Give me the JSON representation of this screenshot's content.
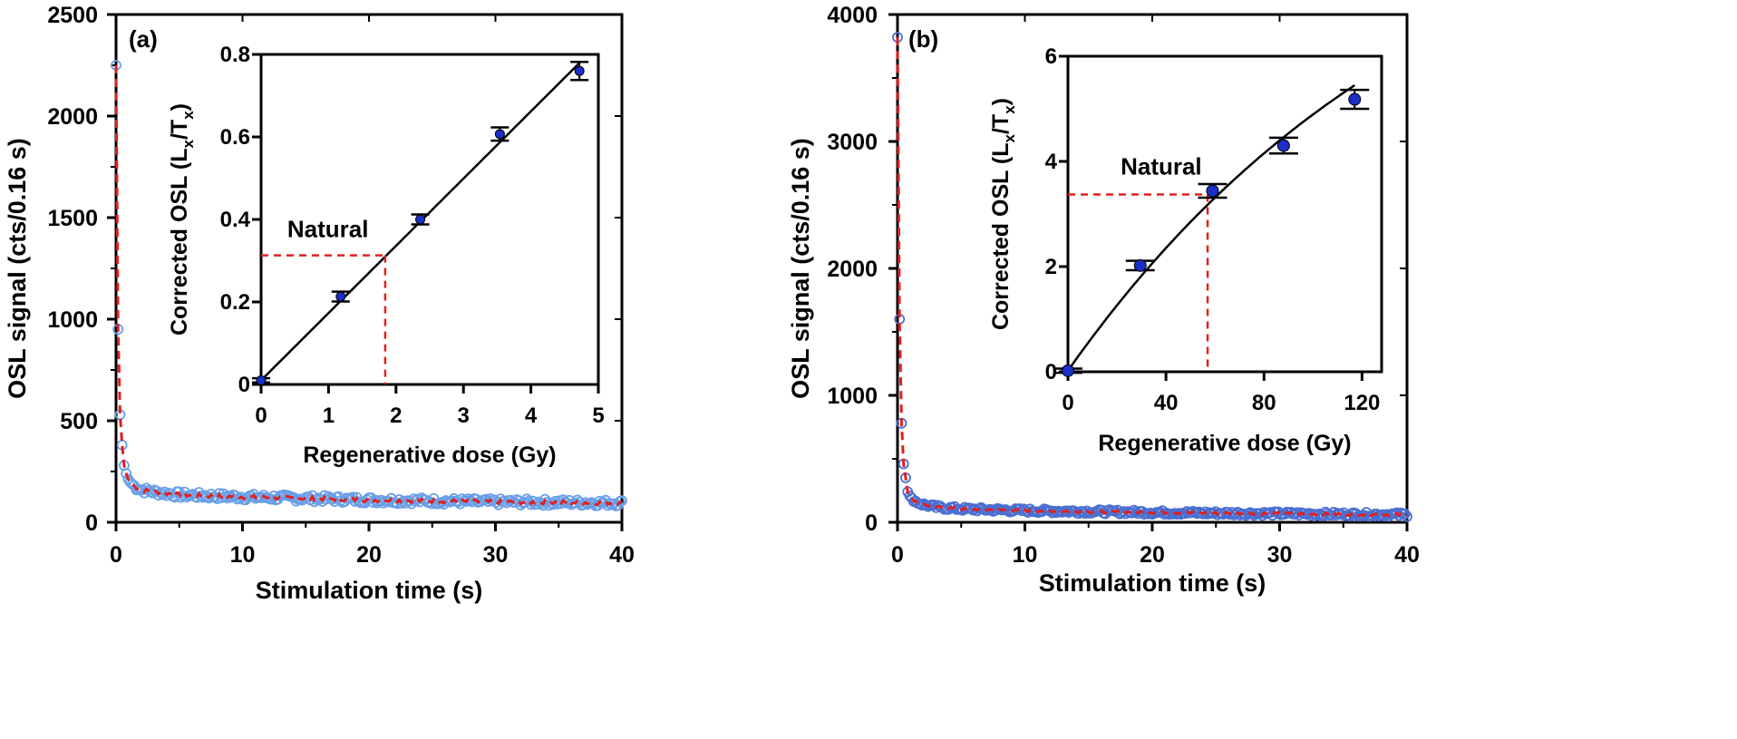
{
  "colors": {
    "open_marker_a": "#6a9fe8",
    "open_marker_b": "#4a6fd0",
    "fit_dashed": "#e02020",
    "filled_marker": "#1a2fc8",
    "line": "#000000",
    "guide_dashed": "#e02020"
  },
  "chart_data": [
    {
      "panel": "(a)",
      "type": "scatter",
      "xlabel": "Stimulation time (s)",
      "ylabel": "OSL signal (cts/0.16 s)",
      "xlim": [
        0,
        40
      ],
      "ylim": [
        0,
        2500
      ],
      "xticks": [
        0,
        10,
        20,
        30,
        40
      ],
      "yticks": [
        0,
        500,
        1000,
        1500,
        2000,
        2500
      ],
      "decay": {
        "peak": 2250,
        "peak_time": 0.0,
        "sampling_interval": 0.16,
        "points": [
          [
            0.0,
            2250
          ],
          [
            0.16,
            950
          ],
          [
            0.32,
            530
          ],
          [
            0.48,
            380
          ],
          [
            0.64,
            280
          ],
          [
            0.8,
            240
          ],
          [
            1.0,
            205
          ],
          [
            1.5,
            175
          ],
          [
            2.0,
            160
          ],
          [
            3.0,
            150
          ],
          [
            5.0,
            135
          ],
          [
            10.0,
            125
          ],
          [
            15.0,
            118
          ],
          [
            20.0,
            110
          ],
          [
            25.0,
            105
          ],
          [
            30.0,
            100
          ],
          [
            35.0,
            98
          ],
          [
            40.0,
            95
          ]
        ]
      },
      "series": [
        {
          "name": "OSL signal",
          "style": "open circles"
        },
        {
          "name": "fit",
          "style": "red dashed line"
        }
      ],
      "inset": {
        "type": "scatter",
        "xlabel": "Regenerative dose (Gy)",
        "ylabel_main": "Corrected OSL (L",
        "ylabel_sub1": "x",
        "ylabel_mid": "/T",
        "ylabel_sub2": "x",
        "ylabel_end": ")",
        "xlim": [
          0,
          5
        ],
        "ylim": [
          0,
          0.8
        ],
        "xticks": [
          0,
          1,
          2,
          3,
          4,
          5
        ],
        "yticks": [
          0,
          0.2,
          0.4,
          0.6,
          0.8
        ],
        "ytick_labels": [
          "0",
          "0.2",
          "0.4",
          "0.6",
          "0.8"
        ],
        "points": [
          {
            "x": 0.0,
            "y": 0.01,
            "err": 0.005
          },
          {
            "x": 1.18,
            "y": 0.213,
            "err": 0.012
          },
          {
            "x": 2.36,
            "y": 0.4,
            "err": 0.012
          },
          {
            "x": 3.54,
            "y": 0.607,
            "err": 0.016
          },
          {
            "x": 4.72,
            "y": 0.76,
            "err": 0.022
          }
        ],
        "fit": {
          "kind": "linear",
          "slope": 0.163,
          "intercept": 0.01,
          "xrange": [
            0,
            4.72
          ]
        },
        "natural": {
          "label": "Natural",
          "y": 0.313,
          "x": 1.84
        }
      }
    },
    {
      "panel": "(b)",
      "type": "scatter",
      "xlabel": "Stimulation time (s)",
      "ylabel": "OSL signal (cts/0.16 s)",
      "xlim": [
        0,
        40
      ],
      "ylim": [
        0,
        4000
      ],
      "xticks": [
        0,
        10,
        20,
        30,
        40
      ],
      "yticks": [
        0,
        1000,
        2000,
        3000,
        4000
      ],
      "decay": {
        "peak": 3820,
        "peak_time": 0.0,
        "sampling_interval": 0.16,
        "points": [
          [
            0.0,
            3820
          ],
          [
            0.16,
            1600
          ],
          [
            0.32,
            780
          ],
          [
            0.48,
            460
          ],
          [
            0.64,
            350
          ],
          [
            0.8,
            240
          ],
          [
            1.0,
            200
          ],
          [
            1.5,
            160
          ],
          [
            2.0,
            140
          ],
          [
            3.0,
            120
          ],
          [
            5.0,
            105
          ],
          [
            10.0,
            92
          ],
          [
            15.0,
            85
          ],
          [
            20.0,
            78
          ],
          [
            25.0,
            72
          ],
          [
            30.0,
            68
          ],
          [
            35.0,
            64
          ],
          [
            40.0,
            60
          ]
        ]
      },
      "series": [
        {
          "name": "OSL signal",
          "style": "open circles"
        },
        {
          "name": "fit",
          "style": "red dashed line"
        }
      ],
      "inset": {
        "type": "scatter",
        "xlabel": "Regenerative dose (Gy)",
        "ylabel_main": "Corrected OSL (L",
        "ylabel_sub1": "x",
        "ylabel_mid": "/T",
        "ylabel_sub2": "x",
        "ylabel_end": ")",
        "xlim": [
          0,
          128
        ],
        "ylim": [
          0,
          6
        ],
        "xticks": [
          0,
          40,
          80,
          120
        ],
        "yticks": [
          0,
          2,
          4,
          6
        ],
        "ytick_labels": [
          "0",
          "2",
          "4",
          "6"
        ],
        "points": [
          {
            "x": 0.0,
            "y": 0.02,
            "err": 0.04
          },
          {
            "x": 29.5,
            "y": 2.02,
            "err": 0.09
          },
          {
            "x": 59.0,
            "y": 3.44,
            "err": 0.13
          },
          {
            "x": 88.0,
            "y": 4.3,
            "err": 0.15
          },
          {
            "x": 117.0,
            "y": 5.18,
            "err": 0.18
          }
        ],
        "fit": {
          "kind": "saturating",
          "a": 10.2,
          "d0": 154,
          "c": 0.02,
          "xrange": [
            0,
            117
          ]
        },
        "natural": {
          "label": "Natural",
          "y": 3.37,
          "x": 57.0
        }
      }
    }
  ]
}
